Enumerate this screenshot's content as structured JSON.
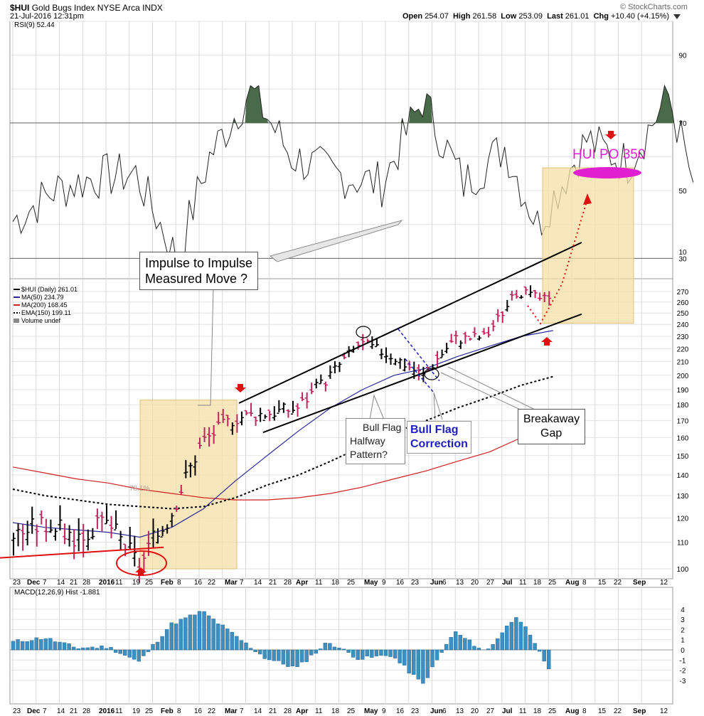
{
  "header": {
    "symbol": "$HUI",
    "name": "Gold Bugs Index",
    "exchange": "NYSE Arca INDX",
    "datetime": "21-Jul-2016 12:31pm",
    "copyright": "© StockCharts.com",
    "open_label": "Open",
    "open": "254.07",
    "high_label": "High",
    "high": "261.58",
    "low_label": "Low",
    "low": "253.09",
    "last_label": "Last",
    "last": "261.01",
    "chg_label": "Chg",
    "chg": "+10.40 (+4.15%)",
    "icon": "triangle-down-icon"
  },
  "colors": {
    "price_up": "#000000",
    "price_down": "#c0245c",
    "ma50": "#2a2a9a",
    "ma200": "#d02020",
    "ema150": "#000000",
    "macd_hist": "#3d8fbf",
    "rsi_fill": "#4a6b4a",
    "highlight": "#f5dfa6",
    "po_oval": "#e020d0",
    "arrow": "#e01010",
    "bull_flag_text": "#1f1fbf"
  },
  "chart_data": [
    {
      "type": "line",
      "panel": "rsi",
      "title": "RSI(9) 52.44",
      "ylim": [
        24,
        100
      ],
      "y_ticks": [
        90,
        70,
        50,
        30
      ],
      "overbought": 70,
      "oversold": 30,
      "x": [
        "Nov 23",
        "Dec 7",
        "Dec 21",
        "Jan 4",
        "Jan 19",
        "Feb 1",
        "Feb 16",
        "Mar 1",
        "Mar 15",
        "Apr 1",
        "Apr 18",
        "May 2",
        "May 16",
        "Jun 1",
        "Jun 13",
        "Jun 27",
        "Jul 11",
        "Jul 21"
      ],
      "values": [
        41,
        50,
        54,
        55,
        30,
        60,
        80,
        60,
        55,
        52,
        77,
        52,
        63,
        40,
        65,
        58,
        78,
        52.44
      ]
    },
    {
      "type": "line",
      "panel": "price",
      "title": "$HUI (Daily) 261.01",
      "legend": [
        {
          "name": "$HUI (Daily) 261.01",
          "color": "#000000"
        },
        {
          "name": "MA(50) 234.79",
          "color": "#2a2a9a"
        },
        {
          "name": "MA(200) 168.45",
          "color": "#d02020"
        },
        {
          "name": "EMA(150) 199.11",
          "color": "#000000"
        },
        {
          "name": "Volume undef",
          "color": "#777777"
        }
      ],
      "scale": "log",
      "y_ticks": [
        10,
        100,
        110,
        120,
        130,
        140,
        150,
        160,
        170,
        180,
        190,
        200,
        210,
        220,
        230,
        240,
        250,
        260,
        270
      ],
      "x_ticks": [
        "23",
        "Dec",
        "7",
        "14",
        "21",
        "28",
        "2016",
        "11",
        "19",
        "25",
        "Feb",
        "8",
        "16",
        "22",
        "Mar",
        "7",
        "14",
        "21",
        "28",
        "Apr",
        "11",
        "18",
        "25",
        "May",
        "9",
        "16",
        "23",
        "Jun",
        "6",
        "13",
        "20",
        "27",
        "Jul",
        "11",
        "18",
        "25",
        "Aug",
        "8",
        "15",
        "22",
        "Sep",
        "12"
      ],
      "x": [
        "Nov 23",
        "Dec 7",
        "Dec 21",
        "Jan 4",
        "Jan 19",
        "Feb 1",
        "Feb 16",
        "Mar 1",
        "Mar 15",
        "Apr 1",
        "Apr 18",
        "May 2",
        "May 16",
        "Jun 1",
        "Jun 13",
        "Jun 27",
        "Jul 11",
        "Jul 21"
      ],
      "series": [
        {
          "name": "$HUI (Daily) 261.01",
          "values": [
            113,
            118,
            112,
            118,
            101,
            122,
            158,
            172,
            175,
            178,
            199,
            225,
            215,
            200,
            228,
            230,
            270,
            261
          ]
        },
        {
          "name": "MA(50) 234.79",
          "values": [
            118,
            116,
            115,
            114,
            112,
            116,
            124,
            137,
            150,
            164,
            178,
            190,
            200,
            205,
            214,
            222,
            230,
            234.79
          ]
        },
        {
          "name": "MA(200) 168.45",
          "values": [
            144,
            141,
            138,
            136,
            133,
            131,
            129,
            128,
            128,
            129,
            131,
            134,
            138,
            142,
            147,
            152,
            160,
            168.45
          ]
        },
        {
          "name": "EMA(150) 199.11",
          "values": [
            133,
            130,
            128,
            126,
            125,
            124,
            125,
            129,
            135,
            140,
            147,
            155,
            163,
            170,
            178,
            185,
            193,
            199.11
          ]
        }
      ],
      "annotations": [
        "Impulse to Impulse\nMeasured Move ?",
        "Bull Flag\nHalfway\nPattern?",
        "Bull Flag\nCorrection",
        "Breakaway\nGap",
        "HUI PO 350",
        "78.1%"
      ]
    },
    {
      "type": "bar",
      "panel": "macd",
      "title": "MACD(12,26,9) Hist -1.881",
      "ylim": [
        -4,
        4
      ],
      "y_ticks": [
        4,
        3,
        2,
        1,
        0,
        -1,
        -2,
        -3
      ],
      "x": [
        "Nov 23",
        "Dec 7",
        "Dec 21",
        "Jan 4",
        "Jan 19",
        "Feb 1",
        "Feb 16",
        "Mar 1",
        "Mar 15",
        "Apr 1",
        "Apr 18",
        "May 2",
        "May 16",
        "Jun 1",
        "Jun 13",
        "Jun 27",
        "Jul 11",
        "Jul 21"
      ],
      "values": [
        0.8,
        1.2,
        0.2,
        0.3,
        -1.2,
        2.5,
        3.8,
        1.5,
        -0.8,
        -1.8,
        0.8,
        -0.9,
        -0.5,
        -3.4,
        1.8,
        -0.2,
        3.5,
        -1.881
      ]
    }
  ],
  "annotations": {
    "impulse": [
      "Impulse to Impulse",
      "Measured Move ?"
    ],
    "bull_flag_halfway": [
      "Bull Flag",
      "Halfway",
      "Pattern?"
    ],
    "bull_flag_correction": [
      "Bull Flag",
      "Correction"
    ],
    "breakaway_gap": [
      "Breakaway",
      "Gap"
    ],
    "po_label": "HUI PO 350",
    "fib_label": "78.1%"
  }
}
